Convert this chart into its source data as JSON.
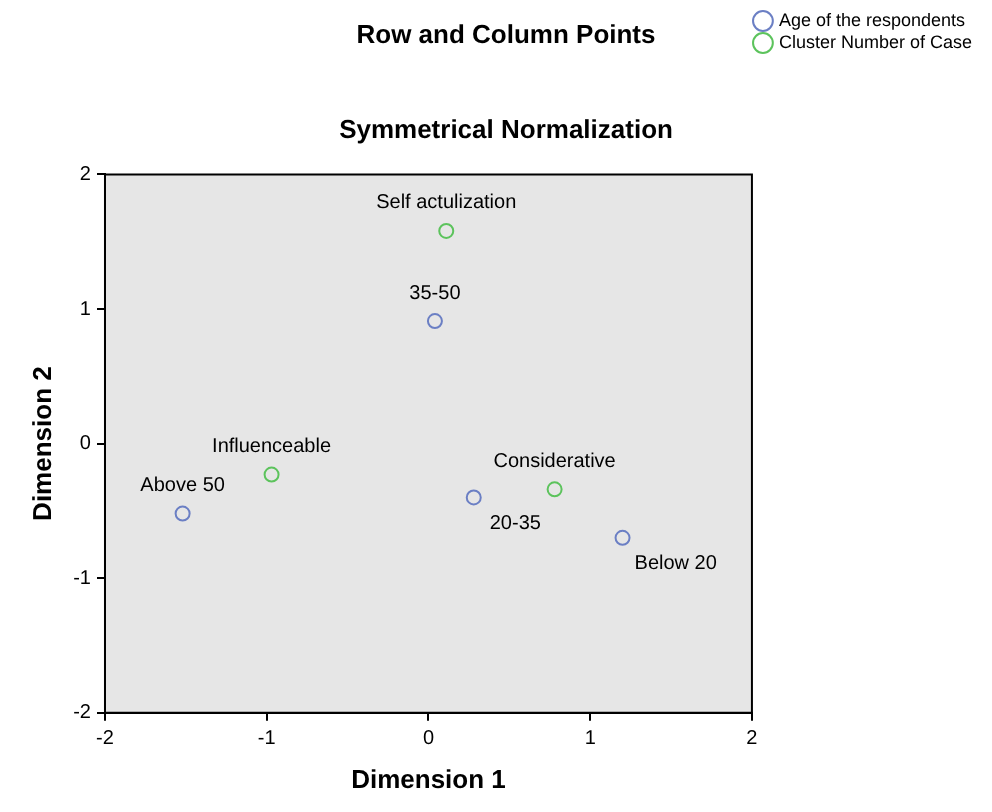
{
  "chart_data": {
    "type": "scatter",
    "title": "Row and Column Points",
    "subtitle": "Symmetrical Normalization",
    "xlabel": "Dimension 1",
    "ylabel": "Dimension 2",
    "xlim": [
      -2,
      2
    ],
    "ylim": [
      -2,
      2
    ],
    "xticks": [
      -2,
      -1,
      0,
      1,
      2
    ],
    "yticks": [
      -2,
      -1,
      0,
      1,
      2
    ],
    "grid": false,
    "legend": "top right",
    "marker": "circle",
    "series": [
      {
        "name": "Age of the respondents",
        "color": "#6b7fc4",
        "x": [
          0.04,
          -1.52,
          0.28,
          1.2
        ],
        "values": [
          0.91,
          -0.52,
          -0.4,
          -0.7
        ]
      },
      {
        "name": "Cluster Number of Case",
        "color": "#5cc35c",
        "x": [
          0.11,
          -0.97,
          0.78
        ],
        "values": [
          1.58,
          -0.23,
          -0.34
        ]
      }
    ],
    "annotations": [
      {
        "text": "Self actulization",
        "x": 0.11,
        "y": 1.58
      },
      {
        "text": "35-50",
        "x": 0.04,
        "y": 0.91
      },
      {
        "text": "Influenceable",
        "x": -0.97,
        "y": -0.23
      },
      {
        "text": "Above 50",
        "x": -1.52,
        "y": -0.52
      },
      {
        "text": "Considerative",
        "x": 0.78,
        "y": -0.34
      },
      {
        "text": "20-35",
        "x": 0.28,
        "y": -0.4
      },
      {
        "text": "Below 20",
        "x": 1.2,
        "y": -0.7
      }
    ]
  }
}
